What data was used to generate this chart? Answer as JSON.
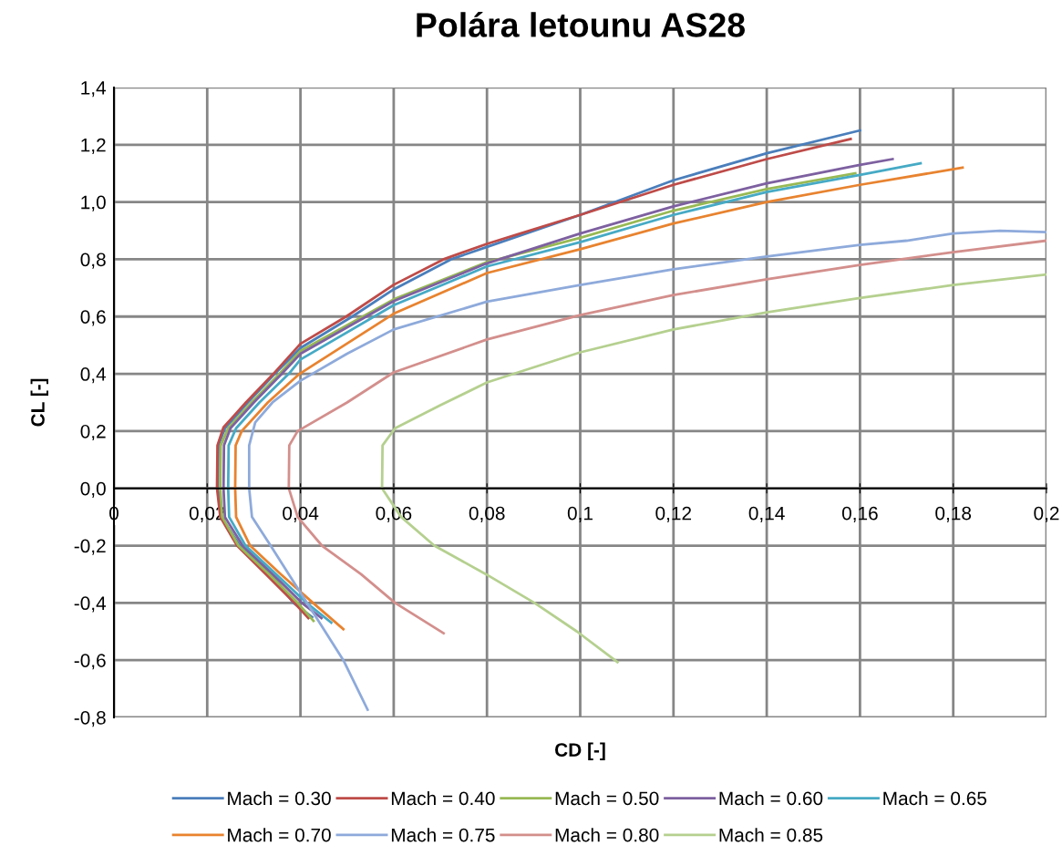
{
  "chart_data": {
    "type": "line",
    "title": "Polára letounu AS28",
    "xlabel": "CD [-]",
    "ylabel": "CL [-]",
    "xlim": [
      0,
      0.2
    ],
    "ylim": [
      -0.8,
      1.4
    ],
    "xticks": [
      {
        "value": 0,
        "label": "0"
      },
      {
        "value": 0.02,
        "label": "0,02"
      },
      {
        "value": 0.04,
        "label": "0,04"
      },
      {
        "value": 0.06,
        "label": "0,06"
      },
      {
        "value": 0.08,
        "label": "0,08"
      },
      {
        "value": 0.1,
        "label": "0,1"
      },
      {
        "value": 0.12,
        "label": "0,12"
      },
      {
        "value": 0.14,
        "label": "0,14"
      },
      {
        "value": 0.16,
        "label": "0,16"
      },
      {
        "value": 0.18,
        "label": "0,18"
      },
      {
        "value": 0.2,
        "label": "0,2"
      }
    ],
    "yticks": [
      {
        "value": -0.8,
        "label": "-0,8"
      },
      {
        "value": -0.6,
        "label": "-0,6"
      },
      {
        "value": -0.4,
        "label": "-0,4"
      },
      {
        "value": -0.2,
        "label": "-0,2"
      },
      {
        "value": 0,
        "label": "0,0"
      },
      {
        "value": 0.2,
        "label": "0,2"
      },
      {
        "value": 0.4,
        "label": "0,4"
      },
      {
        "value": 0.6,
        "label": "0,6"
      },
      {
        "value": 0.8,
        "label": "0,8"
      },
      {
        "value": 1.0,
        "label": "1,0"
      },
      {
        "value": 1.2,
        "label": "1,2"
      },
      {
        "value": 1.4,
        "label": "1,4"
      }
    ],
    "grid": true,
    "legend": "bottom",
    "marker": "none",
    "line_style": "solid",
    "series": [
      {
        "name": "Mach = 0.30",
        "color": "#4a7ebb",
        "x": [
          0.0425,
          0.0385,
          0.0338,
          0.027,
          0.023,
          0.0223,
          0.0224,
          0.0238,
          0.0287,
          0.0345,
          0.04,
          0.0511,
          0.06,
          0.0723,
          0.08,
          0.1,
          0.12,
          0.14,
          0.16
        ],
        "values": [
          -0.45,
          -0.4,
          -0.3,
          -0.2,
          -0.1,
          0,
          0.15,
          0.21,
          0.3,
          0.4,
          0.49,
          0.6,
          0.695,
          0.8,
          0.843,
          0.955,
          1.076,
          1.17,
          1.25
        ]
      },
      {
        "name": "Mach = 0.40",
        "color": "#be4b48",
        "x": [
          0.0417,
          0.0387,
          0.0326,
          0.0264,
          0.0228,
          0.0221,
          0.0222,
          0.0235,
          0.0283,
          0.0342,
          0.04,
          0.0498,
          0.06,
          0.0707,
          0.08,
          0.1,
          0.12,
          0.14,
          0.158
        ],
        "values": [
          -0.453,
          -0.4,
          -0.3,
          -0.2,
          -0.1,
          0,
          0.15,
          0.213,
          0.3,
          0.4,
          0.505,
          0.6,
          0.711,
          0.8,
          0.854,
          0.955,
          1.06,
          1.15,
          1.22
        ]
      },
      {
        "name": "Mach = 0.50",
        "color": "#98b954",
        "x": [
          0.0428,
          0.0394,
          0.0333,
          0.0267,
          0.0232,
          0.0228,
          0.0229,
          0.0245,
          0.0295,
          0.0355,
          0.04,
          0.06,
          0.08,
          0.1,
          0.12,
          0.14,
          0.159
        ],
        "values": [
          -0.463,
          -0.4,
          -0.3,
          -0.2,
          -0.1,
          0,
          0.15,
          0.21,
          0.3,
          0.4,
          0.48,
          0.66,
          0.79,
          0.875,
          0.97,
          1.045,
          1.1
        ]
      },
      {
        "name": "Mach = 0.60",
        "color": "#7d60a0",
        "x": [
          0.0445,
          0.0403,
          0.0341,
          0.0276,
          0.0238,
          0.0235,
          0.0236,
          0.025,
          0.03,
          0.036,
          0.04,
          0.06,
          0.08,
          0.1,
          0.12,
          0.14,
          0.16,
          0.167
        ],
        "values": [
          -0.453,
          -0.4,
          -0.3,
          -0.2,
          -0.1,
          0,
          0.15,
          0.21,
          0.3,
          0.4,
          0.47,
          0.654,
          0.786,
          0.89,
          0.985,
          1.065,
          1.13,
          1.15
        ]
      },
      {
        "name": "Mach = 0.65",
        "color": "#46aac5",
        "x": [
          0.0466,
          0.0413,
          0.0348,
          0.0282,
          0.0247,
          0.0245,
          0.0246,
          0.0262,
          0.0312,
          0.0375,
          0.04,
          0.06,
          0.08,
          0.1,
          0.12,
          0.14,
          0.16,
          0.173
        ],
        "values": [
          -0.469,
          -0.4,
          -0.3,
          -0.2,
          -0.1,
          0,
          0.15,
          0.21,
          0.3,
          0.4,
          0.45,
          0.64,
          0.775,
          0.86,
          0.955,
          1.035,
          1.095,
          1.135
        ]
      },
      {
        "name": "Mach = 0.70",
        "color": "#e8832f",
        "x": [
          0.0492,
          0.0427,
          0.0358,
          0.0292,
          0.0262,
          0.026,
          0.0261,
          0.0274,
          0.033,
          0.0398,
          0.06,
          0.08,
          0.1,
          0.12,
          0.14,
          0.16,
          0.182
        ],
        "values": [
          -0.492,
          -0.4,
          -0.3,
          -0.2,
          -0.1,
          0,
          0.15,
          0.2,
          0.3,
          0.4,
          0.61,
          0.752,
          0.835,
          0.925,
          1.0,
          1.06,
          1.12
        ]
      },
      {
        "name": "Mach = 0.75",
        "color": "#8eaadb",
        "x": [
          0.0544,
          0.0492,
          0.0414,
          0.0375,
          0.0336,
          0.0296,
          0.029,
          0.029,
          0.0303,
          0.034,
          0.04,
          0.05,
          0.06,
          0.08,
          0.1,
          0.12,
          0.14,
          0.16,
          0.17,
          0.18,
          0.19,
          0.2
        ],
        "values": [
          -0.773,
          -0.6,
          -0.4,
          -0.3,
          -0.2,
          -0.1,
          0,
          0.15,
          0.23,
          0.3,
          0.376,
          0.47,
          0.555,
          0.652,
          0.71,
          0.765,
          0.81,
          0.85,
          0.865,
          0.89,
          0.9,
          0.895
        ]
      },
      {
        "name": "Mach = 0.80",
        "color": "#d38f8c",
        "x": [
          0.0707,
          0.0603,
          0.053,
          0.0446,
          0.0394,
          0.0375,
          0.0376,
          0.0394,
          0.05,
          0.06,
          0.08,
          0.1,
          0.12,
          0.14,
          0.16,
          0.18,
          0.2
        ],
        "values": [
          -0.506,
          -0.4,
          -0.3,
          -0.2,
          -0.1,
          0,
          0.15,
          0.2,
          0.3,
          0.405,
          0.52,
          0.605,
          0.675,
          0.73,
          0.78,
          0.825,
          0.865
        ]
      },
      {
        "name": "Mach = 0.85",
        "color": "#b5d08f",
        "x": [
          0.108,
          0.0993,
          0.0902,
          0.0798,
          0.0687,
          0.0616,
          0.0575,
          0.0576,
          0.0603,
          0.07,
          0.08,
          0.1,
          0.12,
          0.14,
          0.16,
          0.18,
          0.2
        ],
        "values": [
          -0.607,
          -0.5,
          -0.4,
          -0.3,
          -0.2,
          -0.1,
          0,
          0.15,
          0.21,
          0.29,
          0.37,
          0.475,
          0.555,
          0.615,
          0.665,
          0.71,
          0.747
        ]
      }
    ]
  }
}
